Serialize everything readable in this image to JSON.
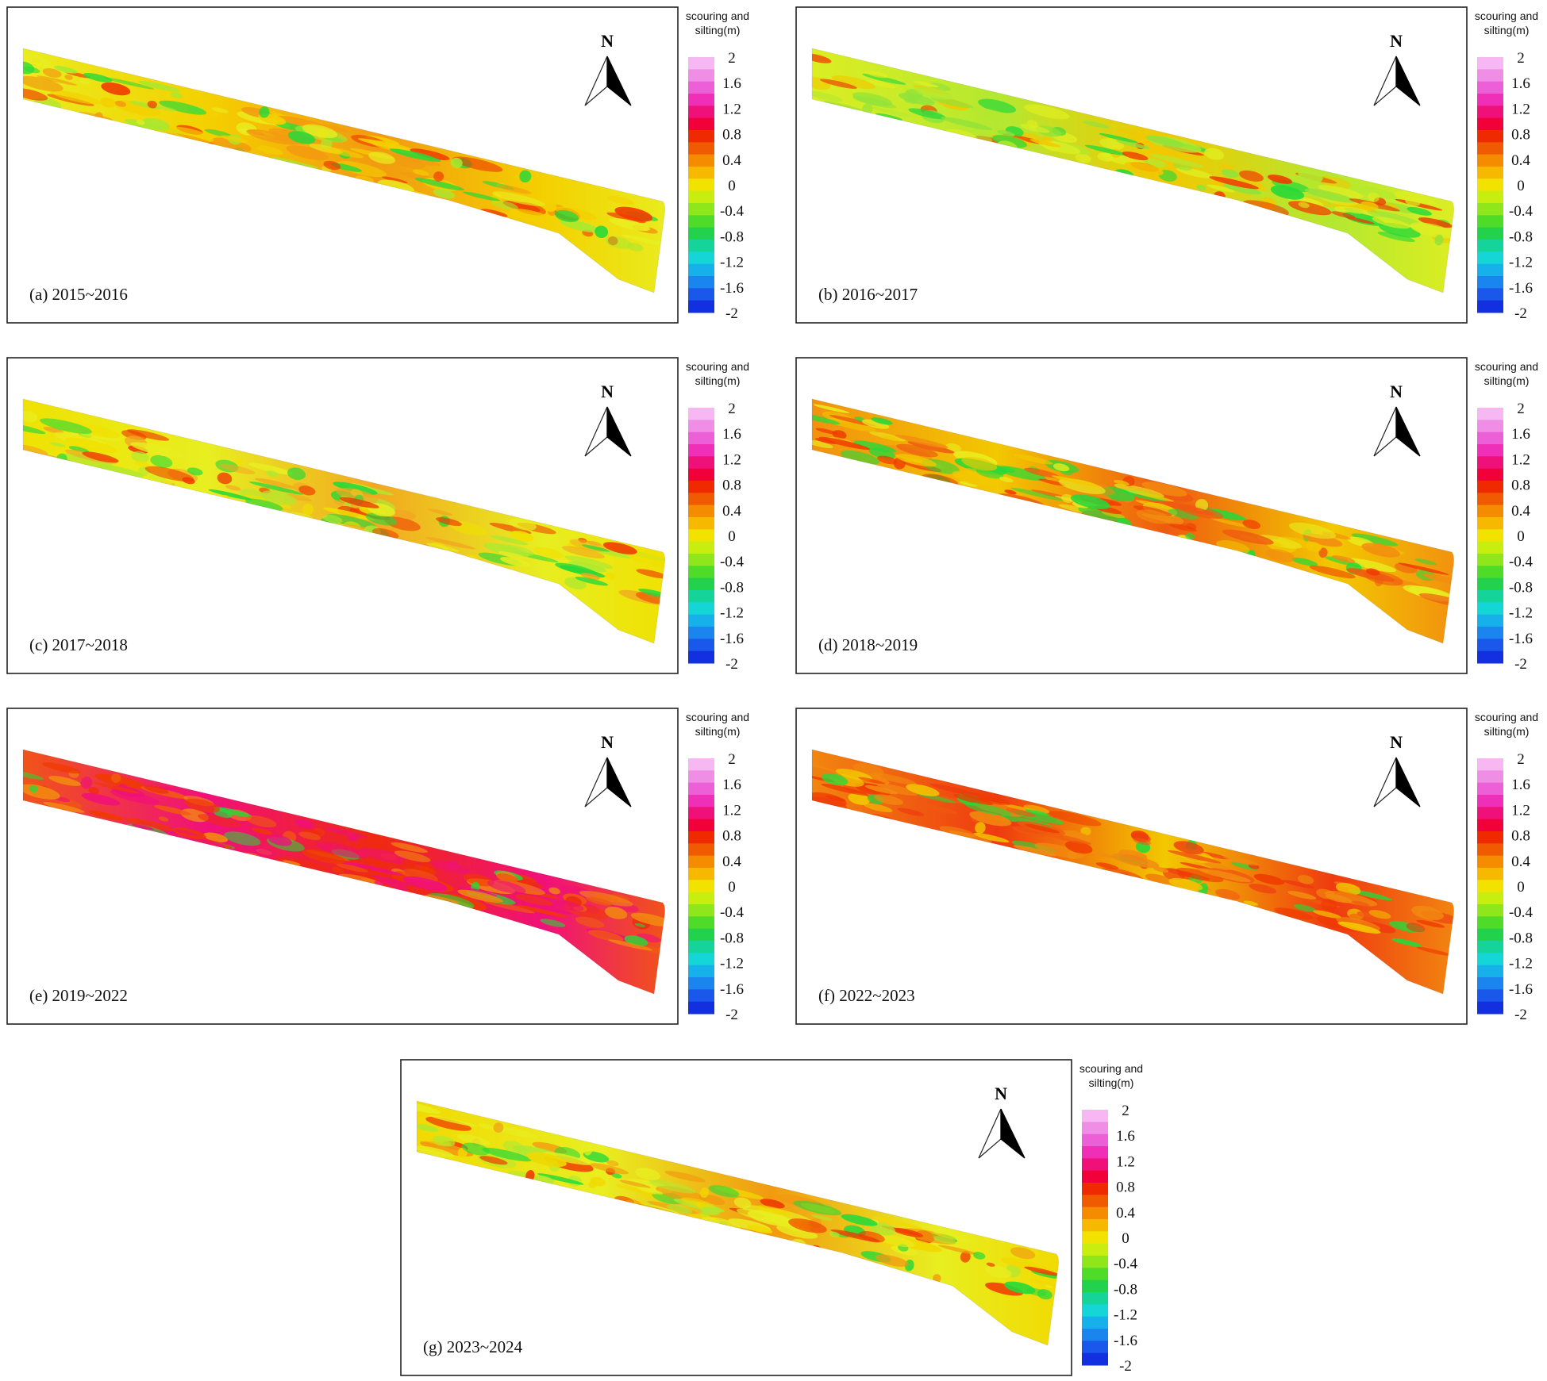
{
  "figure": {
    "legend_title_line1": "scouring and",
    "legend_title_line2": "silting(m)",
    "north_label": "N",
    "legend_ticks": [
      "2",
      "1.6",
      "1.2",
      "0.8",
      "0.4",
      "0",
      "-0.4",
      "-0.8",
      "-1.2",
      "-1.6",
      "-2"
    ],
    "colors": {
      "deep_scour": "#0d2bd6",
      "scour": "#12c8e6",
      "mild_scour": "#25d93a",
      "stable": "#d9ee1a",
      "neutral": "#f2e700",
      "mild_silting": "#f7a300",
      "silting": "#ef3a00",
      "heavy_silting": "#f0006a",
      "extreme_silting": "#f7b0f2"
    },
    "legend_colors": [
      "#f7b7f3",
      "#f08ee6",
      "#ec5fd6",
      "#f02fb8",
      "#f0107a",
      "#f2003a",
      "#ef2a00",
      "#f05a00",
      "#f58c00",
      "#f7b800",
      "#f2e200",
      "#c8ee10",
      "#8fe61a",
      "#4fdc28",
      "#22d24c",
      "#15d49a",
      "#14d6d6",
      "#16b0ea",
      "#1a85ee",
      "#1a58ec",
      "#1230e0"
    ],
    "panels": [
      {
        "id": "a",
        "label": "(a) 2015~2016",
        "dominant": [
          "#e8ee20",
          "#f4d000",
          "#f29a10",
          "#a8e830"
        ]
      },
      {
        "id": "b",
        "label": "(b) 2016~2017",
        "dominant": [
          "#e0ee20",
          "#b4e830",
          "#f2c800",
          "#90e23a"
        ]
      },
      {
        "id": "c",
        "label": "(c) 2017~2018",
        "dominant": [
          "#f0e000",
          "#e8ee20",
          "#f2a820",
          "#b0e830"
        ]
      },
      {
        "id": "d",
        "label": "(d) 2018~2019",
        "dominant": [
          "#f28c10",
          "#f2c800",
          "#ef5a10",
          "#e8ee20"
        ]
      },
      {
        "id": "e",
        "label": "(e) 2019~2022",
        "dominant": [
          "#f05a10",
          "#f0107a",
          "#ef2a10",
          "#f28c10"
        ]
      },
      {
        "id": "f",
        "label": "(f) 2022~2023",
        "dominant": [
          "#f28c10",
          "#ef3a10",
          "#f2c800",
          "#f05a10"
        ]
      },
      {
        "id": "g",
        "label": "(g) 2023~2024",
        "dominant": [
          "#f2d800",
          "#e8ee20",
          "#f29a10",
          "#b0e830"
        ]
      }
    ]
  }
}
